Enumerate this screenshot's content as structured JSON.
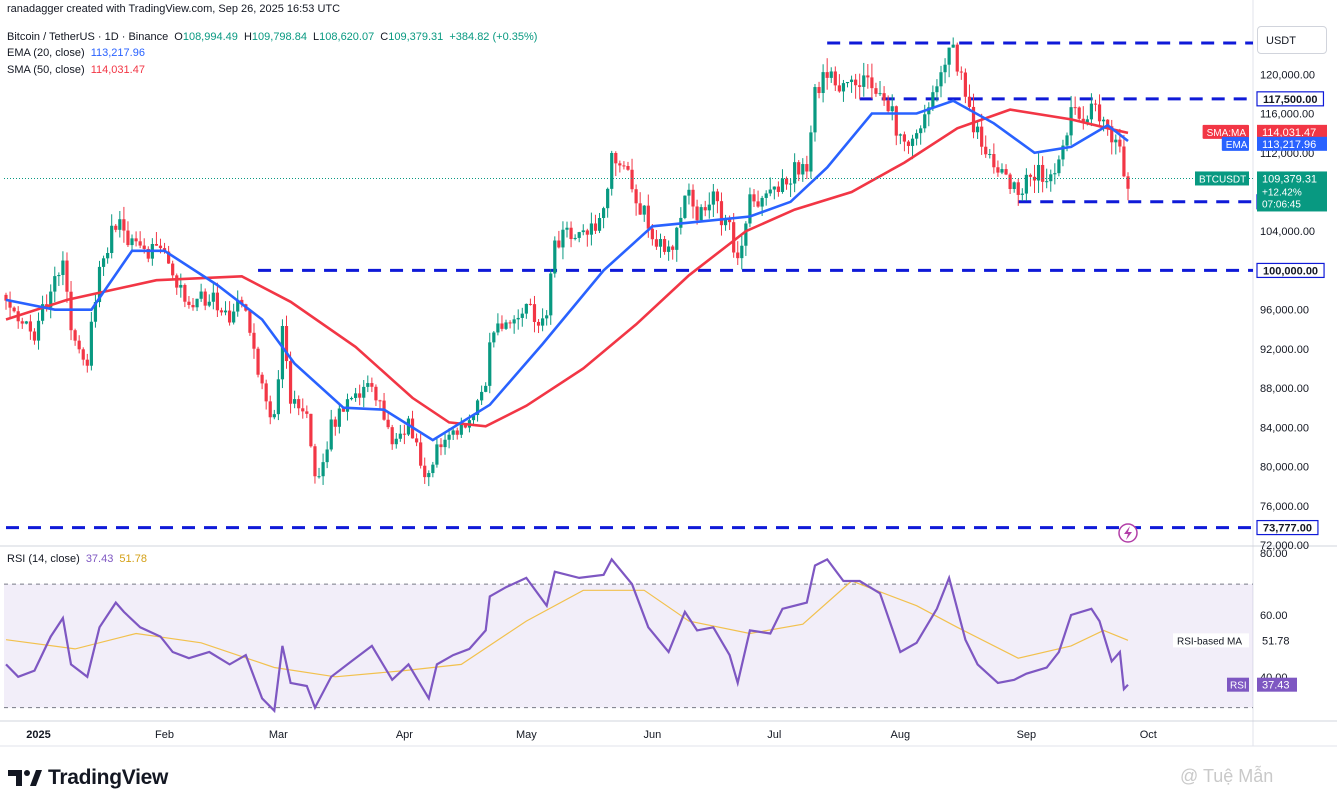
{
  "header": {
    "created_by": "ranadagger created with TradingView.com, Sep 26, 2025 16:53 UTC",
    "symbol_line": "Bitcoin / TetherUS · 1D · Binance",
    "ohlc": {
      "o_label": "O",
      "o": "108,994.49",
      "h_label": "H",
      "h": "109,798.84",
      "l_label": "L",
      "l": "108,620.07",
      "c_label": "C",
      "c": "109,379.31",
      "change": "+384.82 (+0.35%)"
    },
    "ema_label": "EMA (20, close)",
    "ema_value": "113,217.96",
    "sma_label": "SMA (50, close)",
    "sma_value": "114,031.47",
    "rsi_label": "RSI (14, close)",
    "rsi_value": "37.43",
    "rsi_ma_value": "51.78"
  },
  "currency_button": "USDT",
  "footer": {
    "brand": "TradingView",
    "watermark": "@ Tuệ Mẫn"
  },
  "colors": {
    "up": "#089981",
    "down": "#f23645",
    "ema": "#2962ff",
    "sma": "#f23645",
    "rsi": "#7e57c2",
    "rsi_ma": "#f2c14e",
    "level_line": "#0f1ad8",
    "last_price_tag": "#089981"
  },
  "chart_data": {
    "type": "candlestick",
    "title": "",
    "price_axis": {
      "ylim": [
        72000,
        123500
      ],
      "ticks": [
        "72,000.00",
        "76,000.00",
        "80,000.00",
        "84,000.00",
        "88,000.00",
        "92,000.00",
        "96,000.00",
        "104,000.00",
        "108,000.00",
        "112,000.00",
        "116,000.00",
        "120,000.00"
      ]
    },
    "x_axis": {
      "labels": [
        "2025",
        "Feb",
        "Mar",
        "Apr",
        "May",
        "Jun",
        "Jul",
        "Aug",
        "Sep",
        "Oct"
      ],
      "start": "2024-12-24",
      "end": "2025-09-26"
    },
    "horizontal_levels": [
      {
        "label": "117,500.00",
        "value": 117500,
        "from": "2025-07-22",
        "to": "2025-09-26"
      },
      {
        "label": "107,000.00",
        "value": 107000,
        "from": "2025-08-30",
        "to": "2025-09-26"
      },
      {
        "label": "100,000.00",
        "value": 100000,
        "from": "2025-02-24",
        "to": "2025-09-26"
      },
      {
        "label": "73,777.00",
        "value": 73777,
        "from": "2024-12-24",
        "to": "2025-09-26"
      },
      {
        "label": "",
        "value": 123200,
        "from": "2025-07-14",
        "to": "2025-09-26"
      }
    ],
    "price_tags": [
      {
        "label": "SMA:MA",
        "value_label": "114,031.47",
        "value": 114031.47,
        "color": "#f23645"
      },
      {
        "label": "EMA",
        "value_label": "113,217.96",
        "value": 113217.96,
        "color": "#2962ff"
      },
      {
        "label": "BTCUSDT",
        "value_label": "109,379.31",
        "value": 109379.31,
        "color": "#089981",
        "extra": [
          "+12.42%",
          "07:06:45"
        ]
      }
    ],
    "series": [
      {
        "name": "BTCUSDT close",
        "points": [
          [
            "2024-12-24",
            98000
          ],
          [
            "2024-12-27",
            95000
          ],
          [
            "2024-12-31",
            93500
          ],
          [
            "2025-01-04",
            98000
          ],
          [
            "2025-01-07",
            101000
          ],
          [
            "2025-01-09",
            94000
          ],
          [
            "2025-01-13",
            91000
          ],
          [
            "2025-01-16",
            100000
          ],
          [
            "2025-01-20",
            105000
          ],
          [
            "2025-01-22",
            104000
          ],
          [
            "2025-01-26",
            102000
          ],
          [
            "2025-01-31",
            102000
          ],
          [
            "2025-02-03",
            99000
          ],
          [
            "2025-02-07",
            96500
          ],
          [
            "2025-02-12",
            97500
          ],
          [
            "2025-02-17",
            95500
          ],
          [
            "2025-02-21",
            96500
          ],
          [
            "2025-02-25",
            88000
          ],
          [
            "2025-02-28",
            84500
          ],
          [
            "2025-03-02",
            94000
          ],
          [
            "2025-03-04",
            87000
          ],
          [
            "2025-03-08",
            86000
          ],
          [
            "2025-03-10",
            78500
          ],
          [
            "2025-03-14",
            84000
          ],
          [
            "2025-03-19",
            86500
          ],
          [
            "2025-03-24",
            88000
          ],
          [
            "2025-03-29",
            82500
          ],
          [
            "2025-04-02",
            84500
          ],
          [
            "2025-04-07",
            78500
          ],
          [
            "2025-04-09",
            82500
          ],
          [
            "2025-04-13",
            84000
          ],
          [
            "2025-04-17",
            84500
          ],
          [
            "2025-04-21",
            87500
          ],
          [
            "2025-04-22",
            93500
          ],
          [
            "2025-04-26",
            94500
          ],
          [
            "2025-05-01",
            96500
          ],
          [
            "2025-05-06",
            94500
          ],
          [
            "2025-05-08",
            103000
          ],
          [
            "2025-05-14",
            103500
          ],
          [
            "2025-05-20",
            106000
          ],
          [
            "2025-05-22",
            111500
          ],
          [
            "2025-05-27",
            109000
          ],
          [
            "2025-05-31",
            104500
          ],
          [
            "2025-06-05",
            101500
          ],
          [
            "2025-06-09",
            108000
          ],
          [
            "2025-06-12",
            106000
          ],
          [
            "2025-06-16",
            107000
          ],
          [
            "2025-06-20",
            104500
          ],
          [
            "2025-06-22",
            100900
          ],
          [
            "2025-06-25",
            107000
          ],
          [
            "2025-06-30",
            107200
          ],
          [
            "2025-07-03",
            109500
          ],
          [
            "2025-07-09",
            111000
          ],
          [
            "2025-07-11",
            117500
          ],
          [
            "2025-07-14",
            120000
          ],
          [
            "2025-07-18",
            118000
          ],
          [
            "2025-07-22",
            119800
          ],
          [
            "2025-07-27",
            118500
          ],
          [
            "2025-08-01",
            113500
          ],
          [
            "2025-08-05",
            114200
          ],
          [
            "2025-08-10",
            119000
          ],
          [
            "2025-08-13",
            123300
          ],
          [
            "2025-08-17",
            117500
          ],
          [
            "2025-08-20",
            113500
          ],
          [
            "2025-08-25",
            110100
          ],
          [
            "2025-08-29",
            108400
          ],
          [
            "2025-09-01",
            109200
          ],
          [
            "2025-09-06",
            110200
          ],
          [
            "2025-09-09",
            111500
          ],
          [
            "2025-09-12",
            115500
          ],
          [
            "2025-09-17",
            116500
          ],
          [
            "2025-09-19",
            115700
          ],
          [
            "2025-09-22",
            112600
          ],
          [
            "2025-09-24",
            113300
          ],
          [
            "2025-09-25",
            108994
          ],
          [
            "2025-09-26",
            109379
          ]
        ]
      },
      {
        "name": "EMA (20, close)",
        "points": [
          [
            "2024-12-24",
            97000
          ],
          [
            "2025-01-05",
            96000
          ],
          [
            "2025-01-14",
            96000
          ],
          [
            "2025-01-24",
            102000
          ],
          [
            "2025-02-01",
            102000
          ],
          [
            "2025-02-14",
            98500
          ],
          [
            "2025-02-25",
            95000
          ],
          [
            "2025-03-05",
            90500
          ],
          [
            "2025-03-17",
            86000
          ],
          [
            "2025-03-27",
            85800
          ],
          [
            "2025-04-08",
            82700
          ],
          [
            "2025-04-22",
            86300
          ],
          [
            "2025-05-05",
            92500
          ],
          [
            "2025-05-20",
            100000
          ],
          [
            "2025-06-01",
            104500
          ],
          [
            "2025-06-13",
            105000
          ],
          [
            "2025-06-25",
            105500
          ],
          [
            "2025-07-05",
            107000
          ],
          [
            "2025-07-14",
            110500
          ],
          [
            "2025-07-25",
            116000
          ],
          [
            "2025-08-05",
            116000
          ],
          [
            "2025-08-14",
            117300
          ],
          [
            "2025-08-24",
            115000
          ],
          [
            "2025-09-03",
            112000
          ],
          [
            "2025-09-12",
            112600
          ],
          [
            "2025-09-21",
            114800
          ],
          [
            "2025-09-26",
            113200
          ]
        ]
      },
      {
        "name": "SMA (50, close)",
        "points": [
          [
            "2024-12-24",
            95000
          ],
          [
            "2025-01-08",
            97000
          ],
          [
            "2025-01-30",
            99000
          ],
          [
            "2025-02-20",
            99400
          ],
          [
            "2025-03-04",
            96800
          ],
          [
            "2025-03-20",
            92200
          ],
          [
            "2025-04-03",
            87000
          ],
          [
            "2025-04-12",
            84500
          ],
          [
            "2025-04-21",
            84100
          ],
          [
            "2025-05-01",
            86200
          ],
          [
            "2025-05-15",
            90000
          ],
          [
            "2025-05-28",
            94500
          ],
          [
            "2025-06-10",
            99500
          ],
          [
            "2025-06-24",
            104000
          ],
          [
            "2025-07-06",
            106200
          ],
          [
            "2025-07-20",
            108000
          ],
          [
            "2025-08-02",
            111000
          ],
          [
            "2025-08-15",
            114500
          ],
          [
            "2025-08-28",
            116400
          ],
          [
            "2025-09-12",
            115400
          ],
          [
            "2025-09-22",
            114400
          ],
          [
            "2025-09-26",
            114031
          ]
        ]
      }
    ],
    "rsi_panel": {
      "ylim": [
        26,
        82
      ],
      "ticks": [
        "80.00",
        "60.00",
        "40.00"
      ],
      "bands": [
        70,
        30
      ],
      "tags": [
        {
          "label": "RSI-based MA",
          "value_label": "51.78",
          "value": 51.78
        },
        {
          "label": "RSI",
          "value_label": "37.43",
          "value": 37.43
        }
      ],
      "series": [
        {
          "name": "RSI (14, close)",
          "points": [
            [
              "2024-12-24",
              44
            ],
            [
              "2024-12-27",
              40
            ],
            [
              "2024-12-31",
              42
            ],
            [
              "2025-01-04",
              53
            ],
            [
              "2025-01-07",
              59
            ],
            [
              "2025-01-09",
              44
            ],
            [
              "2025-01-13",
              40
            ],
            [
              "2025-01-16",
              56
            ],
            [
              "2025-01-20",
              64
            ],
            [
              "2025-01-22",
              61
            ],
            [
              "2025-01-26",
              56
            ],
            [
              "2025-01-31",
              53
            ],
            [
              "2025-02-03",
              48
            ],
            [
              "2025-02-07",
              46
            ],
            [
              "2025-02-12",
              48
            ],
            [
              "2025-02-17",
              44
            ],
            [
              "2025-02-21",
              47
            ],
            [
              "2025-02-25",
              33
            ],
            [
              "2025-02-28",
              29
            ],
            [
              "2025-03-02",
              50
            ],
            [
              "2025-03-04",
              38
            ],
            [
              "2025-03-08",
              37
            ],
            [
              "2025-03-10",
              30
            ],
            [
              "2025-03-14",
              40
            ],
            [
              "2025-03-19",
              45
            ],
            [
              "2025-03-24",
              50
            ],
            [
              "2025-03-29",
              39
            ],
            [
              "2025-04-02",
              44
            ],
            [
              "2025-04-07",
              33
            ],
            [
              "2025-04-09",
              44
            ],
            [
              "2025-04-13",
              47
            ],
            [
              "2025-04-17",
              49
            ],
            [
              "2025-04-21",
              55
            ],
            [
              "2025-04-22",
              66
            ],
            [
              "2025-04-26",
              69
            ],
            [
              "2025-05-01",
              72
            ],
            [
              "2025-05-06",
              63
            ],
            [
              "2025-05-08",
              74
            ],
            [
              "2025-05-14",
              72
            ],
            [
              "2025-05-20",
              73
            ],
            [
              "2025-05-22",
              78
            ],
            [
              "2025-05-27",
              70
            ],
            [
              "2025-05-31",
              56
            ],
            [
              "2025-06-05",
              48
            ],
            [
              "2025-06-09",
              61
            ],
            [
              "2025-06-12",
              55
            ],
            [
              "2025-06-16",
              56
            ],
            [
              "2025-06-20",
              47
            ],
            [
              "2025-06-22",
              38
            ],
            [
              "2025-06-25",
              55
            ],
            [
              "2025-06-30",
              54
            ],
            [
              "2025-07-03",
              62
            ],
            [
              "2025-07-09",
              64
            ],
            [
              "2025-07-11",
              76
            ],
            [
              "2025-07-14",
              78
            ],
            [
              "2025-07-18",
              71
            ],
            [
              "2025-07-22",
              71
            ],
            [
              "2025-07-27",
              67
            ],
            [
              "2025-08-01",
              48
            ],
            [
              "2025-08-05",
              51
            ],
            [
              "2025-08-10",
              62
            ],
            [
              "2025-08-13",
              72
            ],
            [
              "2025-08-17",
              52
            ],
            [
              "2025-08-20",
              44
            ],
            [
              "2025-08-25",
              38
            ],
            [
              "2025-08-29",
              39
            ],
            [
              "2025-09-01",
              41
            ],
            [
              "2025-09-06",
              43
            ],
            [
              "2025-09-09",
              48
            ],
            [
              "2025-09-12",
              60
            ],
            [
              "2025-09-17",
              62
            ],
            [
              "2025-09-19",
              58
            ],
            [
              "2025-09-22",
              45
            ],
            [
              "2025-09-24",
              48
            ],
            [
              "2025-09-25",
              36
            ],
            [
              "2025-09-26",
              37.4
            ]
          ]
        },
        {
          "name": "RSI-based MA",
          "points": [
            [
              "2024-12-24",
              52
            ],
            [
              "2025-01-10",
              49
            ],
            [
              "2025-01-25",
              54
            ],
            [
              "2025-02-10",
              51
            ],
            [
              "2025-02-28",
              43
            ],
            [
              "2025-03-15",
              40
            ],
            [
              "2025-04-01",
              42
            ],
            [
              "2025-04-15",
              44
            ],
            [
              "2025-05-01",
              58
            ],
            [
              "2025-05-15",
              68
            ],
            [
              "2025-05-30",
              68
            ],
            [
              "2025-06-10",
              58
            ],
            [
              "2025-06-25",
              54
            ],
            [
              "2025-07-08",
              57
            ],
            [
              "2025-07-20",
              71
            ],
            [
              "2025-08-05",
              63
            ],
            [
              "2025-08-15",
              56
            ],
            [
              "2025-08-30",
              46
            ],
            [
              "2025-09-12",
              50
            ],
            [
              "2025-09-20",
              55
            ],
            [
              "2025-09-26",
              51.8
            ]
          ]
        }
      ]
    }
  }
}
